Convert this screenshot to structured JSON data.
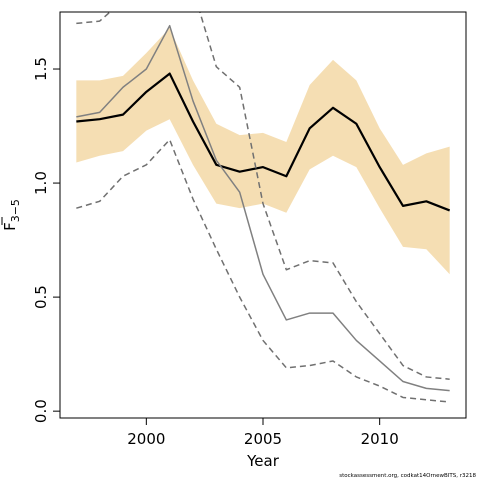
{
  "chart_data": {
    "type": "line",
    "title": "",
    "xlabel": "Year",
    "ylabel_main": "F",
    "ylabel_sub": "3−5",
    "x": [
      1997,
      1998,
      1999,
      2000,
      2001,
      2002,
      2003,
      2004,
      2005,
      2006,
      2007,
      2008,
      2009,
      2010,
      2011,
      2012,
      2013
    ],
    "xlim": [
      1996.3,
      2013.7
    ],
    "ylim": [
      -0.03,
      1.75
    ],
    "xticks": [
      2000,
      2005,
      2010
    ],
    "yticks": [
      0.0,
      0.5,
      1.0,
      1.5
    ],
    "ytick_labels": [
      "0.0",
      "0.5",
      "1.0",
      "1.5"
    ],
    "grid": false,
    "series": [
      {
        "role": "confidence_band",
        "color": "#f5deb3",
        "upper": [
          1.45,
          1.45,
          1.47,
          1.57,
          1.68,
          1.45,
          1.26,
          1.21,
          1.22,
          1.18,
          1.43,
          1.54,
          1.45,
          1.24,
          1.08,
          1.13,
          1.16
        ],
        "lower": [
          1.09,
          1.12,
          1.14,
          1.23,
          1.28,
          1.08,
          0.91,
          0.89,
          0.91,
          0.87,
          1.06,
          1.12,
          1.07,
          0.89,
          0.72,
          0.71,
          0.6
        ]
      },
      {
        "role": "estimate",
        "color": "#000000",
        "width": 2.2,
        "dash": "",
        "values": [
          1.27,
          1.28,
          1.3,
          1.4,
          1.48,
          1.27,
          1.08,
          1.05,
          1.07,
          1.03,
          1.24,
          1.33,
          1.26,
          1.07,
          0.9,
          0.92,
          0.88
        ]
      },
      {
        "role": "retro_estimate",
        "color": "#808080",
        "width": 1.5,
        "dash": "",
        "values": [
          1.29,
          1.31,
          1.42,
          1.5,
          1.69,
          1.36,
          1.1,
          0.96,
          0.6,
          0.4,
          0.43,
          0.43,
          0.31,
          0.22,
          0.13,
          0.1,
          0.09
        ]
      },
      {
        "role": "retro_upper",
        "color": "#707070",
        "width": 1.5,
        "dash": "6,4",
        "values": [
          1.7,
          1.71,
          1.8,
          1.9,
          2.0,
          1.85,
          1.51,
          1.42,
          0.91,
          0.62,
          0.66,
          0.65,
          0.48,
          0.34,
          0.2,
          0.15,
          0.14
        ]
      },
      {
        "role": "retro_lower",
        "color": "#707070",
        "width": 1.5,
        "dash": "6,4",
        "values": [
          0.89,
          0.92,
          1.03,
          1.08,
          1.19,
          0.93,
          0.71,
          0.5,
          0.31,
          0.19,
          0.2,
          0.22,
          0.15,
          0.11,
          0.06,
          0.05,
          0.04
        ]
      }
    ]
  },
  "footer": {
    "text": "stockassessment.org, codkat14OrnewBITS, r3218"
  }
}
